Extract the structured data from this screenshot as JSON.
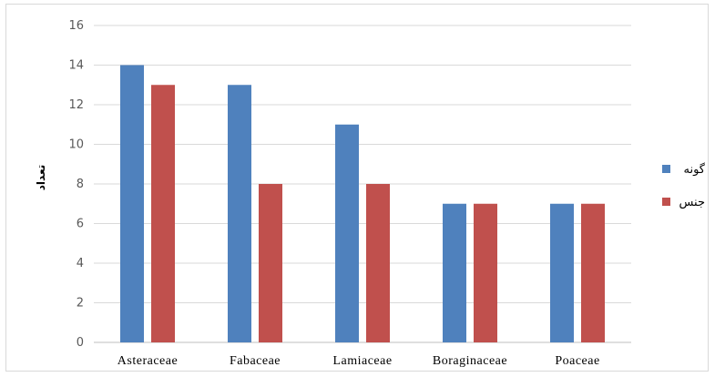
{
  "chart_data": {
    "type": "bar",
    "title": "",
    "xlabel": "",
    "ylabel": "تعداد",
    "ylim": [
      0,
      16
    ],
    "yticks": [
      0,
      2,
      4,
      6,
      8,
      10,
      12,
      14,
      16
    ],
    "grid": true,
    "legend_position": "right",
    "categories": [
      "Asteraceae",
      "Fabaceae",
      "Lamiaceae",
      "Boraginaceae",
      "Poaceae"
    ],
    "series": [
      {
        "name": "گونه",
        "color": "#4f81bd",
        "values": [
          14,
          13,
          11,
          7,
          7
        ]
      },
      {
        "name": "جنس",
        "color": "#c0504d",
        "values": [
          13,
          8,
          8,
          7,
          7
        ]
      }
    ]
  }
}
